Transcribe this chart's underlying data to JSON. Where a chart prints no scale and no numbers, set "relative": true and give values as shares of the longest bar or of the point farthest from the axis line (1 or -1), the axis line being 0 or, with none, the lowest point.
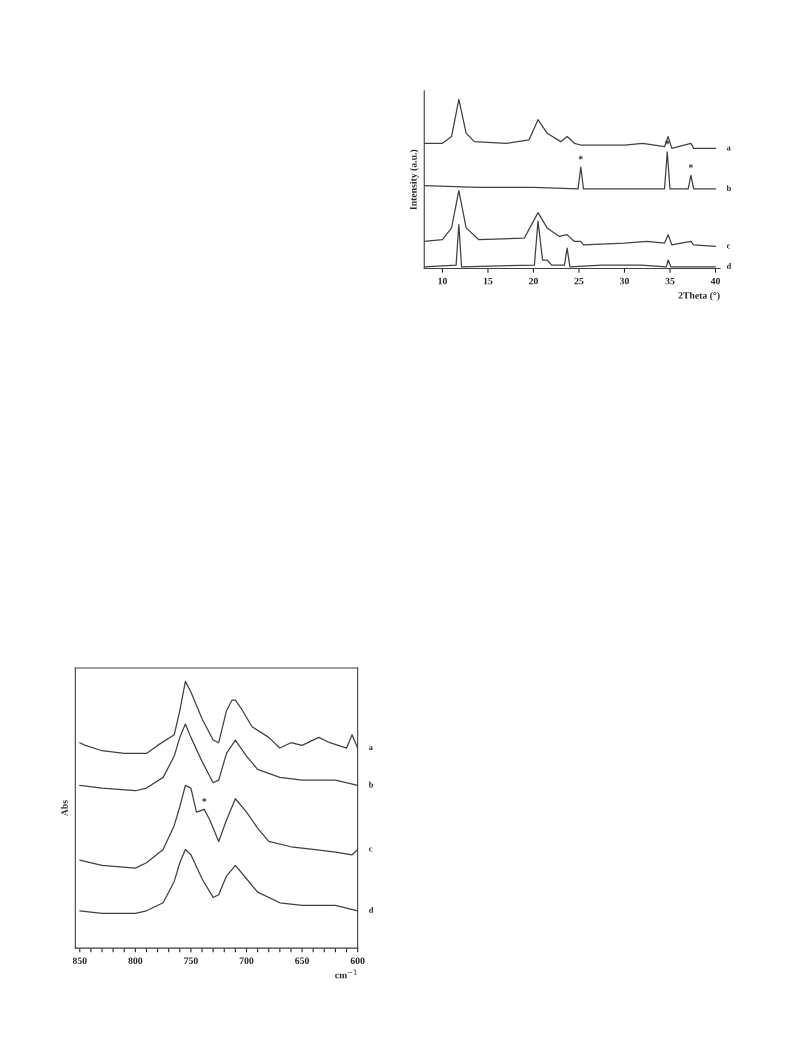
{
  "chart_data": [
    {
      "type": "line",
      "relative": true,
      "xlabel": "2Theta (°)",
      "ylabel": "Intensity (a.u.)",
      "xlim": [
        8,
        40.5
      ],
      "xticks": [
        10,
        15,
        20,
        25,
        30,
        35,
        40
      ],
      "legend": false,
      "grid": false,
      "series": [
        {
          "name": "a",
          "color": "#404040",
          "x": [
            8,
            10,
            11,
            11.8,
            12.6,
            13.5,
            17,
            19.5,
            20.5,
            21.5,
            23,
            23.7,
            24.5,
            25.2,
            27,
            30,
            32,
            34.4,
            34.8,
            35.2,
            37.3,
            37.6,
            40
          ],
          "values": [
            0.74,
            0.74,
            0.78,
            1.0,
            0.8,
            0.75,
            0.74,
            0.76,
            0.88,
            0.8,
            0.75,
            0.78,
            0.74,
            0.73,
            0.73,
            0.73,
            0.74,
            0.72,
            0.78,
            0.71,
            0.74,
            0.71,
            0.71
          ]
        },
        {
          "name": "b",
          "color": "#404040",
          "x": [
            8,
            14,
            20,
            24.9,
            25.2,
            25.5,
            27,
            34.4,
            34.7,
            35.0,
            37.0,
            37.3,
            37.6,
            40
          ],
          "values": [
            0.49,
            0.48,
            0.48,
            0.47,
            0.6,
            0.47,
            0.47,
            0.47,
            0.69,
            0.47,
            0.47,
            0.55,
            0.47,
            0.47
          ]
        },
        {
          "name": "c",
          "color": "#404040",
          "x": [
            8,
            10,
            11,
            11.8,
            12.6,
            14,
            19,
            20.5,
            21.5,
            22.8,
            23.7,
            24.5,
            25.2,
            25.5,
            30,
            32.5,
            34.4,
            34.8,
            35.2,
            37.3,
            37.6,
            40
          ],
          "values": [
            0.16,
            0.17,
            0.24,
            0.46,
            0.24,
            0.17,
            0.18,
            0.33,
            0.24,
            0.19,
            0.2,
            0.16,
            0.16,
            0.14,
            0.15,
            0.16,
            0.15,
            0.2,
            0.14,
            0.16,
            0.14,
            0.13
          ]
        },
        {
          "name": "d",
          "color": "#404040",
          "x": [
            8,
            11.5,
            11.8,
            12.1,
            20.1,
            20.5,
            21,
            21.5,
            22,
            23.4,
            23.7,
            24,
            27.5,
            31.8,
            34.6,
            34.8,
            35.1,
            40
          ],
          "values": [
            0.01,
            0.02,
            0.26,
            0.01,
            0.02,
            0.28,
            0.05,
            0.05,
            0.02,
            0.02,
            0.12,
            0.01,
            0.02,
            0.02,
            0.01,
            0.05,
            0.01,
            0.01
          ]
        }
      ],
      "annotations": [
        {
          "text": "*",
          "x": 25.2,
          "y": 0.6
        },
        {
          "text": "*",
          "x": 34.7,
          "y": 0.69
        },
        {
          "text": "*",
          "x": 37.3,
          "y": 0.55
        }
      ]
    },
    {
      "type": "line",
      "relative": true,
      "xlabel": "cm$^{−1}$",
      "ylabel": "Abs",
      "xlim": [
        854,
        600
      ],
      "legend": false,
      "grid": false,
      "xticks": [
        850,
        {
          "value": 840,
          "label": null
        },
        {
          "value": 830,
          "label": null
        },
        {
          "value": 820,
          "label": null
        },
        {
          "value": 810,
          "label": null
        },
        800,
        {
          "value": 790,
          "label": null
        },
        {
          "value": 780,
          "label": null
        },
        {
          "value": 770,
          "label": null
        },
        {
          "value": 760,
          "label": null
        },
        750,
        {
          "value": 740,
          "label": null
        },
        {
          "value": 730,
          "label": null
        },
        {
          "value": 720,
          "label": null
        },
        {
          "value": 710,
          "label": null
        },
        700,
        {
          "value": 690,
          "label": null
        },
        {
          "value": 680,
          "label": null
        },
        {
          "value": 670,
          "label": null
        },
        {
          "value": 660,
          "label": null
        },
        650,
        {
          "value": 640,
          "label": null
        },
        {
          "value": 630,
          "label": null
        },
        {
          "value": 620,
          "label": null
        },
        {
          "value": 610,
          "label": null
        },
        600
      ],
      "series": [
        {
          "name": "a",
          "color": "#404040",
          "x": [
            850,
            845,
            830,
            810,
            790,
            780,
            765,
            760,
            755,
            750,
            740,
            730,
            725,
            718,
            713,
            710,
            705,
            695,
            680,
            670,
            660,
            650,
            635,
            625,
            610,
            605,
            600
          ],
          "values": [
            0.77,
            0.76,
            0.74,
            0.73,
            0.73,
            0.76,
            0.8,
            0.89,
            1.0,
            0.96,
            0.86,
            0.78,
            0.77,
            0.89,
            0.93,
            0.93,
            0.9,
            0.83,
            0.79,
            0.75,
            0.77,
            0.76,
            0.79,
            0.77,
            0.75,
            0.8,
            0.75
          ]
        },
        {
          "name": "b",
          "color": "#404040",
          "x": [
            850,
            830,
            800,
            790,
            775,
            765,
            760,
            755,
            750,
            740,
            730,
            725,
            718,
            710,
            700,
            690,
            670,
            650,
            620,
            600
          ],
          "values": [
            0.61,
            0.6,
            0.59,
            0.6,
            0.64,
            0.72,
            0.79,
            0.84,
            0.79,
            0.7,
            0.62,
            0.63,
            0.73,
            0.78,
            0.72,
            0.67,
            0.64,
            0.63,
            0.63,
            0.61
          ]
        },
        {
          "name": "c",
          "color": "#404040",
          "x": [
            850,
            830,
            800,
            790,
            775,
            765,
            760,
            755,
            750,
            745,
            738,
            733,
            725,
            718,
            710,
            700,
            690,
            680,
            660,
            640,
            620,
            605,
            600
          ],
          "values": [
            0.33,
            0.31,
            0.3,
            0.32,
            0.37,
            0.46,
            0.53,
            0.61,
            0.6,
            0.51,
            0.52,
            0.48,
            0.4,
            0.48,
            0.56,
            0.51,
            0.45,
            0.4,
            0.38,
            0.37,
            0.36,
            0.35,
            0.37
          ]
        },
        {
          "name": "d",
          "color": "#404040",
          "x": [
            850,
            830,
            800,
            790,
            775,
            765,
            760,
            755,
            750,
            740,
            730,
            725,
            718,
            710,
            700,
            690,
            670,
            650,
            620,
            600
          ],
          "values": [
            0.14,
            0.13,
            0.13,
            0.14,
            0.17,
            0.25,
            0.32,
            0.37,
            0.35,
            0.26,
            0.19,
            0.2,
            0.27,
            0.31,
            0.26,
            0.21,
            0.17,
            0.16,
            0.16,
            0.14
          ]
        }
      ],
      "annotations": [
        {
          "text": "*",
          "x": 738,
          "y": 0.52
        }
      ]
    }
  ]
}
